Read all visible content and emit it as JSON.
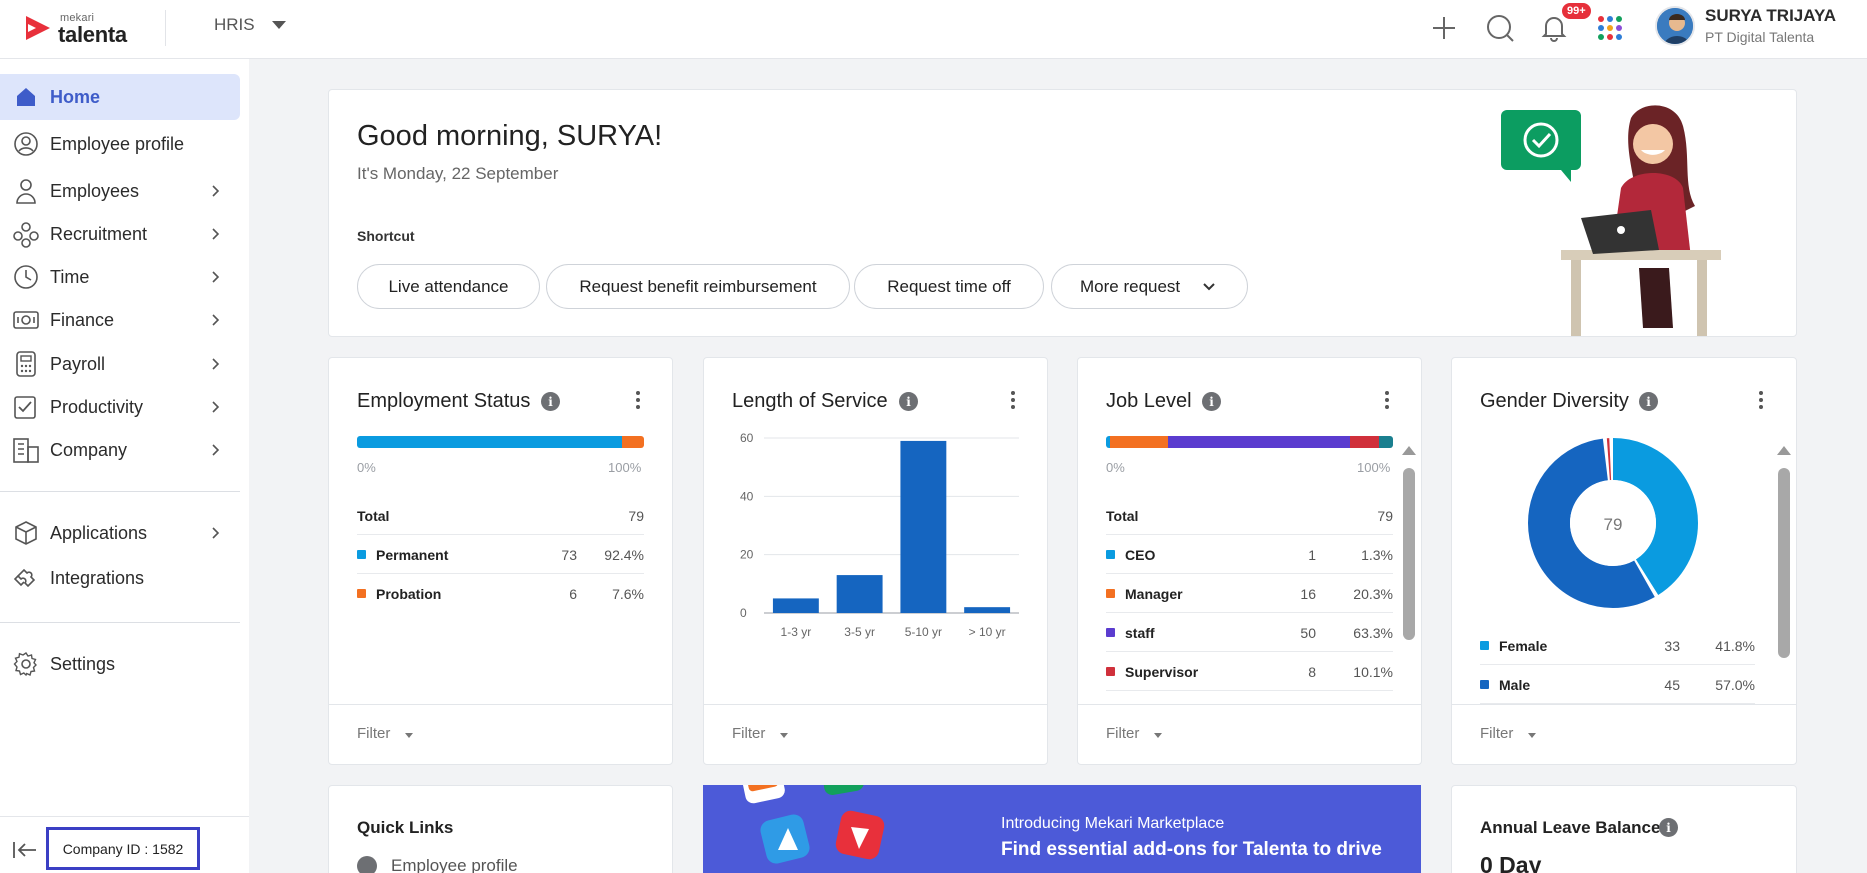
{
  "brand": {
    "small": "mekari",
    "big": "talenta",
    "accent": "#e8303b"
  },
  "header": {
    "module": "HRIS",
    "notification_badge": "99+",
    "user_name": "SURYA TRIJAYA",
    "user_company": "PT Digital Talenta",
    "icons": [
      "plus-icon",
      "search-icon",
      "bell-icon",
      "apps-grid-icon"
    ]
  },
  "sidebar": {
    "items": [
      {
        "label": "Home",
        "icon": "home-icon",
        "active": true,
        "chevron": false
      },
      {
        "label": "Employee profile",
        "icon": "user-circle-icon",
        "chevron": false
      },
      {
        "label": "Employees",
        "icon": "person-icon",
        "chevron": true
      },
      {
        "label": "Recruitment",
        "icon": "people-network-icon",
        "chevron": true
      },
      {
        "label": "Time",
        "icon": "clock-icon",
        "chevron": true
      },
      {
        "label": "Finance",
        "icon": "money-icon",
        "chevron": true
      },
      {
        "label": "Payroll",
        "icon": "calculator-icon",
        "chevron": true
      },
      {
        "label": "Productivity",
        "icon": "checklist-icon",
        "chevron": true
      },
      {
        "label": "Company",
        "icon": "building-icon",
        "chevron": true
      },
      {
        "label": "Applications",
        "icon": "box-icon",
        "chevron": true
      },
      {
        "label": "Integrations",
        "icon": "puzzle-icon",
        "chevron": false
      },
      {
        "label": "Settings",
        "icon": "gear-icon",
        "chevron": false
      }
    ],
    "company_id": "Company ID : 1582"
  },
  "greeting": {
    "title": "Good morning, SURYA!",
    "date": "It's Monday, 22 September",
    "shortcut_label": "Shortcut",
    "shortcuts": [
      "Live attendance",
      "Request benefit reimbursement",
      "Request time off",
      "More request"
    ]
  },
  "employment_status": {
    "title": "Employment Status",
    "total_label": "Total",
    "total": "79",
    "min_label": "0%",
    "max_label": "100%",
    "rows": [
      {
        "label": "Permanent",
        "count": "73",
        "pct": "92.4%",
        "color": "#0a9be0",
        "share": 92.4
      },
      {
        "label": "Probation",
        "count": "6",
        "pct": "7.6%",
        "color": "#f37021",
        "share": 7.6
      }
    ],
    "filter": "Filter"
  },
  "length_of_service": {
    "title": "Length of Service",
    "filter": "Filter"
  },
  "chart_data": {
    "type": "bar",
    "title": "Length of Service",
    "categories": [
      "1-3 yr",
      "3-5 yr",
      "5-10 yr",
      "> 10 yr"
    ],
    "values": [
      5,
      13,
      59,
      2
    ],
    "ylim": [
      0,
      60
    ],
    "yticks": [
      "0",
      "20",
      "40",
      "60"
    ],
    "grid": true,
    "color": "#1565c0"
  },
  "job_level": {
    "title": "Job Level",
    "total_label": "Total",
    "total": "79",
    "min_label": "0%",
    "max_label": "100%",
    "rows": [
      {
        "label": "CEO",
        "count": "1",
        "pct": "1.3%",
        "color": "#0a9be0",
        "share": 1.3
      },
      {
        "label": "Manager",
        "count": "16",
        "pct": "20.3%",
        "color": "#f37021",
        "share": 20.3
      },
      {
        "label": "staff",
        "count": "50",
        "pct": "63.3%",
        "color": "#5b3ccf",
        "share": 63.3
      },
      {
        "label": "Supervisor",
        "count": "8",
        "pct": "10.1%",
        "color": "#d0303b",
        "share": 10.1
      }
    ],
    "extra_share": {
      "color": "#1a7f8f",
      "share": 5.0
    },
    "filter": "Filter"
  },
  "gender_diversity": {
    "title": "Gender Diversity",
    "center": "79",
    "rows": [
      {
        "label": "Female",
        "count": "33",
        "pct": "41.8%",
        "color": "#0a9be0",
        "share": 41.8
      },
      {
        "label": "Male",
        "count": "45",
        "pct": "57.0%",
        "color": "#1565c0",
        "share": 57.0
      }
    ],
    "filter": "Filter"
  },
  "quick_links": {
    "title": "Quick Links",
    "first": "Employee profile"
  },
  "banner": {
    "title": "Introducing Mekari Marketplace",
    "subtitle": "Find essential add-ons for Talenta to drive"
  },
  "annual_leave": {
    "title": "Annual Leave Balance",
    "value": "0 Day"
  }
}
